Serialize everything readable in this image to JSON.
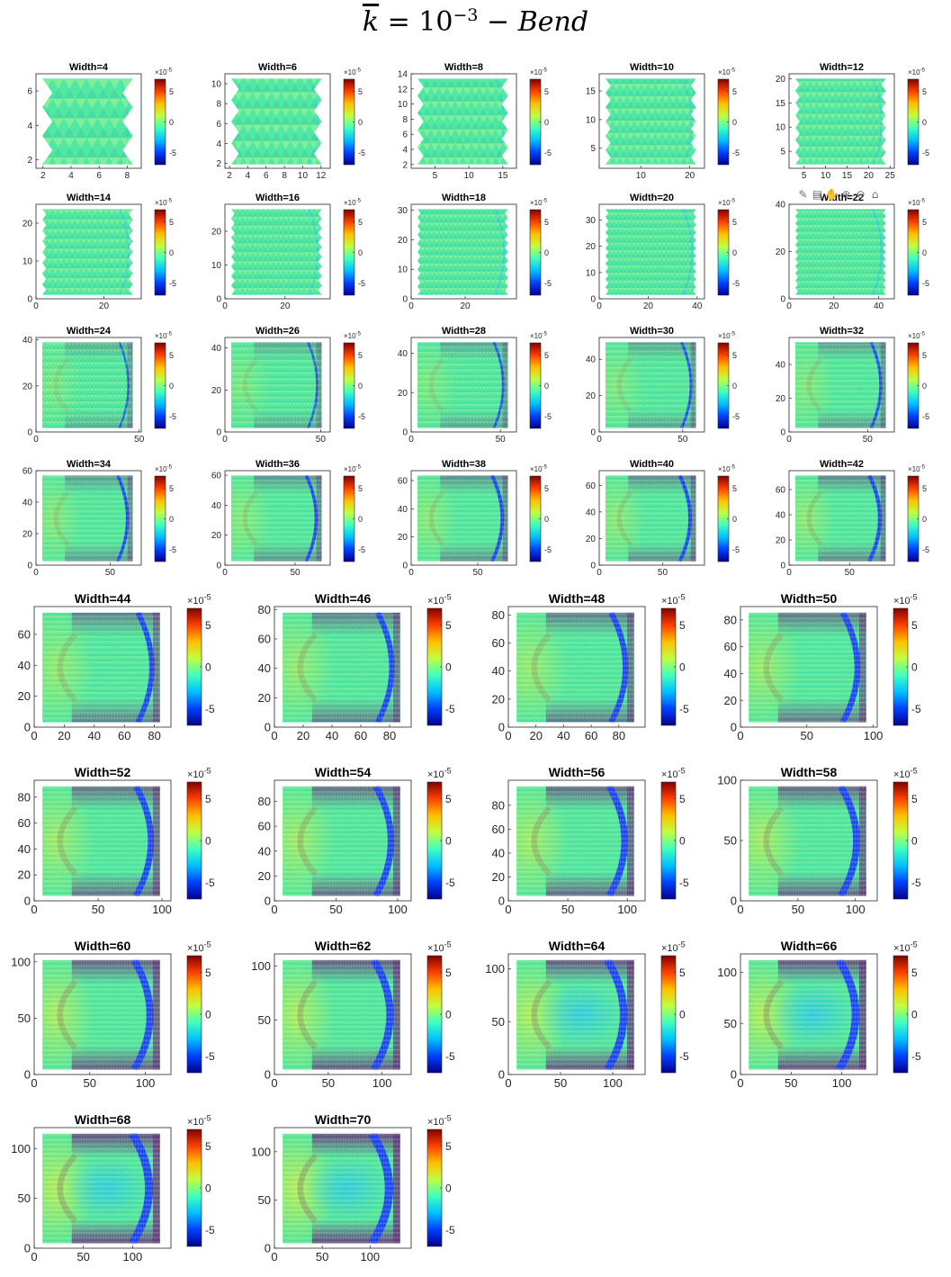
{
  "figure": {
    "title_k": "k",
    "title_eq": " = 10",
    "title_exp": "−3",
    "title_dash": " − ",
    "title_word": "Bend"
  },
  "toolbar": {
    "icons": [
      "brush-icon",
      "datatip-icon",
      "pan-icon",
      "zoom-in-icon",
      "zoom-out-icon",
      "home-icon"
    ],
    "glyphs": [
      "✎",
      "▤",
      "✋",
      "⊕",
      "⊖",
      "⌂"
    ]
  },
  "chart_data": {
    "type": "heatmap",
    "colorbar": {
      "exponent_label": "×10",
      "exponent": "-5",
      "ticks": [
        "5",
        "0",
        "-5"
      ],
      "tick_values": [
        5,
        0,
        -5
      ],
      "clim": [
        -7,
        7
      ],
      "colormap": [
        "#00008f",
        "#0040ff",
        "#00c0ff",
        "#40ffbf",
        "#bfff40",
        "#ffc000",
        "#ff4000",
        "#800000"
      ]
    },
    "colors": {
      "base": "#50e8a2",
      "bright": "#c8f050",
      "cyan": "#2cc8f0",
      "purple": "#6a2c82",
      "blue": "#1a3cff",
      "deep": "#0d1f9c"
    },
    "panels": [
      {
        "title": "Width=4",
        "xlim": [
          1.5,
          9
        ],
        "ylim": [
          1.5,
          7
        ],
        "xticks": [
          "2",
          "4",
          "6",
          "8"
        ],
        "xtick_values": [
          2,
          4,
          6,
          8
        ],
        "yticks": [
          "2",
          "4",
          "6"
        ],
        "ytick_values": [
          2,
          4,
          6
        ]
      },
      {
        "title": "Width=6",
        "xlim": [
          1.5,
          13
        ],
        "ylim": [
          1.5,
          11
        ],
        "xticks": [
          "2",
          "4",
          "6",
          "8",
          "10",
          "12"
        ],
        "xtick_values": [
          2,
          4,
          6,
          8,
          10,
          12
        ],
        "yticks": [
          "2",
          "4",
          "6",
          "8",
          "10"
        ],
        "ytick_values": [
          2,
          4,
          6,
          8,
          10
        ]
      },
      {
        "title": "Width=8",
        "xlim": [
          1.5,
          17
        ],
        "ylim": [
          1.5,
          14
        ],
        "xticks": [
          "5",
          "10",
          "15"
        ],
        "xtick_values": [
          5,
          10,
          15
        ],
        "yticks": [
          "2",
          "4",
          "6",
          "8",
          "10",
          "12",
          "14"
        ],
        "ytick_values": [
          2,
          4,
          6,
          8,
          10,
          12,
          14
        ]
      },
      {
        "title": "Width=10",
        "xlim": [
          1.5,
          23
        ],
        "ylim": [
          1.5,
          18
        ],
        "xticks": [
          "10",
          "20"
        ],
        "xtick_values": [
          10,
          20
        ],
        "yticks": [
          "5",
          "10",
          "15"
        ],
        "ytick_values": [
          5,
          10,
          15
        ]
      },
      {
        "title": "Width=12",
        "xlim": [
          1.5,
          26
        ],
        "ylim": [
          1.5,
          21
        ],
        "xticks": [
          "5",
          "10",
          "15",
          "20",
          "25"
        ],
        "xtick_values": [
          5,
          10,
          15,
          20,
          25
        ],
        "yticks": [
          "5",
          "10",
          "15",
          "20"
        ],
        "ytick_values": [
          5,
          10,
          15,
          20
        ]
      },
      {
        "title": "Width=14",
        "xlim": [
          0,
          31
        ],
        "ylim": [
          0,
          25
        ],
        "xticks": [
          "0",
          "20"
        ],
        "xtick_values": [
          0,
          20
        ],
        "yticks": [
          "0",
          "10",
          "20"
        ],
        "ytick_values": [
          0,
          10,
          20
        ]
      },
      {
        "title": "Width=16",
        "xlim": [
          0,
          35
        ],
        "ylim": [
          0,
          28
        ],
        "xticks": [
          "0",
          "20"
        ],
        "xtick_values": [
          0,
          20
        ],
        "yticks": [
          "0",
          "10",
          "20"
        ],
        "ytick_values": [
          0,
          10,
          20
        ]
      },
      {
        "title": "Width=18",
        "xlim": [
          0,
          39
        ],
        "ylim": [
          0,
          32
        ],
        "xticks": [
          "0",
          "20"
        ],
        "xtick_values": [
          0,
          20
        ],
        "yticks": [
          "0",
          "10",
          "20",
          "30"
        ],
        "ytick_values": [
          0,
          10,
          20,
          30
        ]
      },
      {
        "title": "Width=20",
        "xlim": [
          0,
          43
        ],
        "ylim": [
          0,
          36
        ],
        "xticks": [
          "0",
          "20",
          "40"
        ],
        "xtick_values": [
          0,
          20,
          40
        ],
        "yticks": [
          "0",
          "10",
          "20",
          "30"
        ],
        "ytick_values": [
          0,
          10,
          20,
          30
        ]
      },
      {
        "title": "Width=22",
        "xlim": [
          0,
          47
        ],
        "ylim": [
          0,
          40
        ],
        "xticks": [
          "0",
          "20",
          "40"
        ],
        "xtick_values": [
          0,
          20,
          40
        ],
        "yticks": [
          "0",
          "20",
          "40"
        ],
        "ytick_values": [
          0,
          20,
          40
        ]
      },
      {
        "title": "Width=24",
        "xlim": [
          0,
          51
        ],
        "ylim": [
          0,
          41
        ],
        "xticks": [
          "0",
          "50"
        ],
        "xtick_values": [
          0,
          50
        ],
        "yticks": [
          "0",
          "20",
          "40"
        ],
        "ytick_values": [
          0,
          20,
          40
        ]
      },
      {
        "title": "Width=26",
        "xlim": [
          0,
          55
        ],
        "ylim": [
          0,
          45
        ],
        "xticks": [
          "0",
          "50"
        ],
        "xtick_values": [
          0,
          50
        ],
        "yticks": [
          "0",
          "20",
          "40"
        ],
        "ytick_values": [
          0,
          20,
          40
        ]
      },
      {
        "title": "Width=28",
        "xlim": [
          0,
          59
        ],
        "ylim": [
          0,
          48
        ],
        "xticks": [
          "0",
          "50"
        ],
        "xtick_values": [
          0,
          50
        ],
        "yticks": [
          "0",
          "20",
          "40"
        ],
        "ytick_values": [
          0,
          20,
          40
        ]
      },
      {
        "title": "Width=30",
        "xlim": [
          0,
          63
        ],
        "ylim": [
          0,
          52
        ],
        "xticks": [
          "0",
          "50"
        ],
        "xtick_values": [
          0,
          50
        ],
        "yticks": [
          "0",
          "20",
          "40"
        ],
        "ytick_values": [
          0,
          20,
          40
        ]
      },
      {
        "title": "Width=32",
        "xlim": [
          0,
          67
        ],
        "ylim": [
          0,
          56
        ],
        "xticks": [
          "0",
          "50"
        ],
        "xtick_values": [
          0,
          50
        ],
        "yticks": [
          "0",
          "20",
          "40"
        ],
        "ytick_values": [
          0,
          20,
          40
        ]
      },
      {
        "title": "Width=34",
        "xlim": [
          0,
          71
        ],
        "ylim": [
          0,
          60
        ],
        "xticks": [
          "0",
          "50"
        ],
        "xtick_values": [
          0,
          50
        ],
        "yticks": [
          "0",
          "20",
          "40",
          "60"
        ],
        "ytick_values": [
          0,
          20,
          40,
          60
        ]
      },
      {
        "title": "Width=36",
        "xlim": [
          0,
          75
        ],
        "ylim": [
          0,
          63
        ],
        "xticks": [
          "0",
          "50"
        ],
        "xtick_values": [
          0,
          50
        ],
        "yticks": [
          "0",
          "20",
          "40",
          "60"
        ],
        "ytick_values": [
          0,
          20,
          40,
          60
        ]
      },
      {
        "title": "Width=38",
        "xlim": [
          0,
          79
        ],
        "ylim": [
          0,
          67
        ],
        "xticks": [
          "0",
          "50"
        ],
        "xtick_values": [
          0,
          50
        ],
        "yticks": [
          "0",
          "20",
          "40",
          "60"
        ],
        "ytick_values": [
          0,
          20,
          40,
          60
        ]
      },
      {
        "title": "Width=40",
        "xlim": [
          0,
          83
        ],
        "ylim": [
          0,
          71
        ],
        "xticks": [
          "0",
          "50"
        ],
        "xtick_values": [
          0,
          50
        ],
        "yticks": [
          "0",
          "20",
          "40",
          "60"
        ],
        "ytick_values": [
          0,
          20,
          40,
          60
        ]
      },
      {
        "title": "Width=42",
        "xlim": [
          0,
          87
        ],
        "ylim": [
          0,
          75
        ],
        "xticks": [
          "0",
          "50"
        ],
        "xtick_values": [
          0,
          50
        ],
        "yticks": [
          "0",
          "20",
          "40",
          "60"
        ],
        "ytick_values": [
          0,
          20,
          40,
          60
        ]
      },
      {
        "title": "Width=44",
        "xlim": [
          0,
          91
        ],
        "ylim": [
          0,
          78
        ],
        "xticks": [
          "0",
          "20",
          "40",
          "60",
          "80"
        ],
        "xtick_values": [
          0,
          20,
          40,
          60,
          80
        ],
        "yticks": [
          "0",
          "20",
          "40",
          "60"
        ],
        "ytick_values": [
          0,
          20,
          40,
          60
        ]
      },
      {
        "title": "Width=46",
        "xlim": [
          0,
          95
        ],
        "ylim": [
          0,
          82
        ],
        "xticks": [
          "0",
          "20",
          "40",
          "60",
          "80"
        ],
        "xtick_values": [
          0,
          20,
          40,
          60,
          80
        ],
        "yticks": [
          "0",
          "20",
          "40",
          "60",
          "80"
        ],
        "ytick_values": [
          0,
          20,
          40,
          60,
          80
        ]
      },
      {
        "title": "Width=48",
        "xlim": [
          0,
          99
        ],
        "ylim": [
          0,
          86
        ],
        "xticks": [
          "0",
          "20",
          "40",
          "60",
          "80"
        ],
        "xtick_values": [
          0,
          20,
          40,
          60,
          80
        ],
        "yticks": [
          "0",
          "20",
          "40",
          "60",
          "80"
        ],
        "ytick_values": [
          0,
          20,
          40,
          60,
          80
        ]
      },
      {
        "title": "Width=50",
        "xlim": [
          0,
          103
        ],
        "ylim": [
          0,
          90
        ],
        "xticks": [
          "0",
          "50",
          "100"
        ],
        "xtick_values": [
          0,
          50,
          100
        ],
        "yticks": [
          "0",
          "20",
          "40",
          "60",
          "80"
        ],
        "ytick_values": [
          0,
          20,
          40,
          60,
          80
        ]
      },
      {
        "title": "Width=52",
        "xlim": [
          0,
          107
        ],
        "ylim": [
          0,
          93
        ],
        "xticks": [
          "0",
          "50",
          "100"
        ],
        "xtick_values": [
          0,
          50,
          100
        ],
        "yticks": [
          "0",
          "20",
          "40",
          "60",
          "80"
        ],
        "ytick_values": [
          0,
          20,
          40,
          60,
          80
        ]
      },
      {
        "title": "Width=54",
        "xlim": [
          0,
          111
        ],
        "ylim": [
          0,
          97
        ],
        "xticks": [
          "0",
          "50",
          "100"
        ],
        "xtick_values": [
          0,
          50,
          100
        ],
        "yticks": [
          "0",
          "20",
          "40",
          "60",
          "80"
        ],
        "ytick_values": [
          0,
          20,
          40,
          60,
          80
        ]
      },
      {
        "title": "Width=56",
        "xlim": [
          0,
          115
        ],
        "ylim": [
          0,
          101
        ],
        "xticks": [
          "0",
          "50",
          "100"
        ],
        "xtick_values": [
          0,
          50,
          100
        ],
        "yticks": [
          "0",
          "20",
          "40",
          "60",
          "80"
        ],
        "ytick_values": [
          0,
          20,
          40,
          60,
          80
        ]
      },
      {
        "title": "Width=58",
        "xlim": [
          0,
          119
        ],
        "ylim": [
          0,
          100
        ],
        "xticks": [
          "0",
          "50",
          "100"
        ],
        "xtick_values": [
          0,
          50,
          100
        ],
        "yticks": [
          "0",
          "50",
          "100"
        ],
        "ytick_values": [
          0,
          50,
          100
        ]
      },
      {
        "title": "Width=60",
        "xlim": [
          0,
          123
        ],
        "ylim": [
          0,
          107
        ],
        "xticks": [
          "0",
          "50",
          "100"
        ],
        "xtick_values": [
          0,
          50,
          100
        ],
        "yticks": [
          "0",
          "50",
          "100"
        ],
        "ytick_values": [
          0,
          50,
          100
        ]
      },
      {
        "title": "Width=62",
        "xlim": [
          0,
          127
        ],
        "ylim": [
          0,
          111
        ],
        "xticks": [
          "0",
          "50",
          "100"
        ],
        "xtick_values": [
          0,
          50,
          100
        ],
        "yticks": [
          "0",
          "50",
          "100"
        ],
        "ytick_values": [
          0,
          50,
          100
        ]
      },
      {
        "title": "Width=64",
        "xlim": [
          0,
          131
        ],
        "ylim": [
          0,
          114
        ],
        "xticks": [
          "0",
          "50",
          "100"
        ],
        "xtick_values": [
          0,
          50,
          100
        ],
        "yticks": [
          "0",
          "50",
          "100"
        ],
        "ytick_values": [
          0,
          50,
          100
        ]
      },
      {
        "title": "Width=66",
        "xlim": [
          0,
          135
        ],
        "ylim": [
          0,
          118
        ],
        "xticks": [
          "0",
          "50",
          "100"
        ],
        "xtick_values": [
          0,
          50,
          100
        ],
        "yticks": [
          "0",
          "50",
          "100"
        ],
        "ytick_values": [
          0,
          50,
          100
        ]
      },
      {
        "title": "Width=68",
        "xlim": [
          0,
          139
        ],
        "ylim": [
          0,
          121
        ],
        "xticks": [
          "0",
          "50",
          "100"
        ],
        "xtick_values": [
          0,
          50,
          100
        ],
        "yticks": [
          "0",
          "50",
          "100"
        ],
        "ytick_values": [
          0,
          50,
          100
        ]
      },
      {
        "title": "Width=70",
        "xlim": [
          0,
          143
        ],
        "ylim": [
          0,
          125
        ],
        "xticks": [
          "0",
          "50",
          "100"
        ],
        "xtick_values": [
          0,
          50,
          100
        ],
        "yticks": [
          "0",
          "50",
          "100"
        ],
        "ytick_values": [
          0,
          50,
          100
        ]
      }
    ]
  }
}
